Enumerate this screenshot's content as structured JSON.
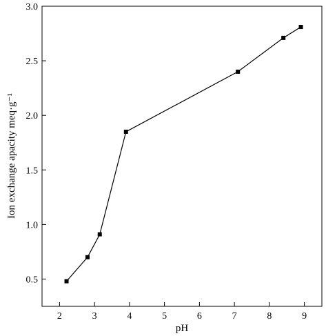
{
  "chart_data": {
    "type": "line",
    "title": "",
    "xlabel": "pH",
    "ylabel": "Ion exchange apacity meq·g⁻¹",
    "x": [
      2.2,
      2.8,
      3.15,
      3.9,
      7.1,
      8.4,
      8.9
    ],
    "series": [
      {
        "values": [
          0.48,
          0.7,
          0.91,
          1.85,
          2.4,
          2.71,
          2.81
        ]
      }
    ],
    "xlim": [
      1.5,
      9.5
    ],
    "ylim": [
      0.25,
      3.0
    ],
    "xticks": [
      "2",
      "3",
      "4",
      "5",
      "6",
      "7",
      "8",
      "9"
    ],
    "yticks": [
      "0.5",
      "1.0",
      "1.5",
      "2.0",
      "2.5",
      "3.0"
    ],
    "grid": false,
    "line_color": "#000000",
    "marker": "square"
  }
}
